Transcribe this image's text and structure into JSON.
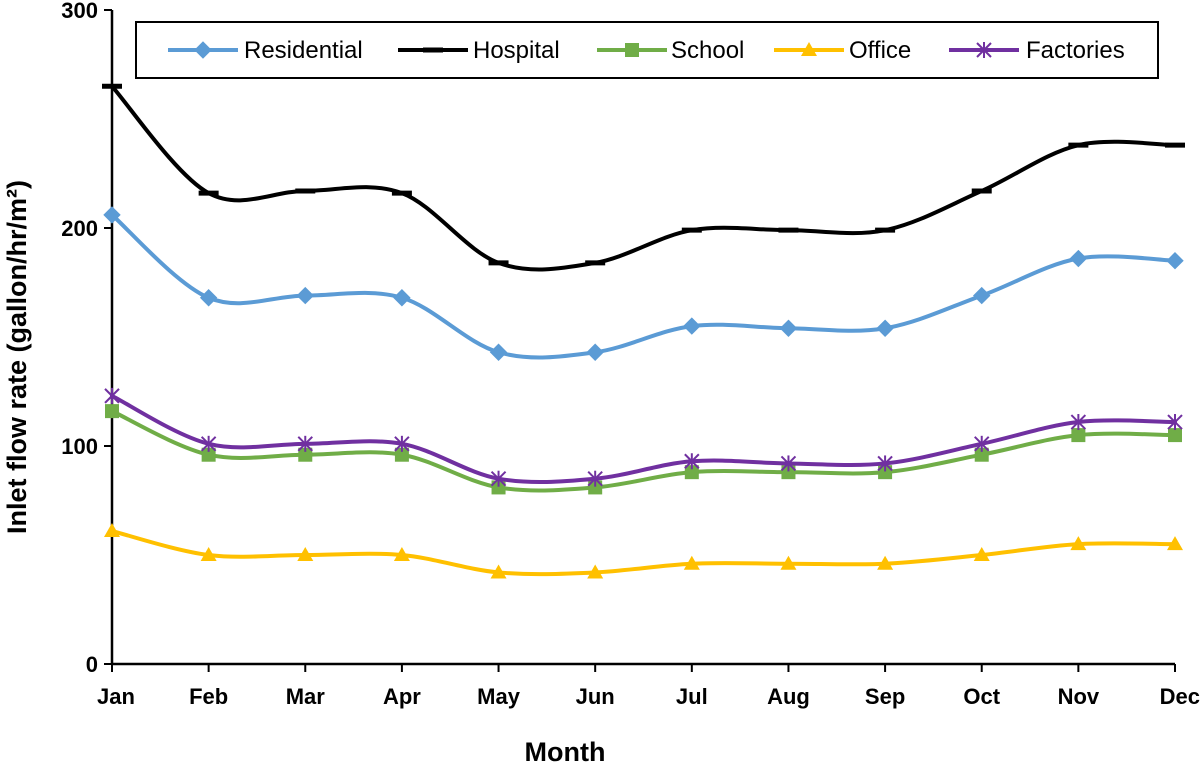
{
  "chart_data": {
    "type": "line",
    "title": "",
    "xlabel": "Month",
    "ylabel": "Inlet flow rate (gallon/hr/m²)",
    "ylim": [
      0,
      300
    ],
    "yticks": [
      0,
      100,
      200,
      300
    ],
    "grid": false,
    "legend_position": "top",
    "categories": [
      "Jan",
      "Feb",
      "Mar",
      "Apr",
      "May",
      "Jun",
      "Jul",
      "Aug",
      "Sep",
      "Oct",
      "Nov",
      "Dec"
    ],
    "series": [
      {
        "name": "Residential",
        "color": "#5B9BD5",
        "marker": "diamond",
        "values": [
          206,
          168,
          169,
          168,
          143,
          143,
          155,
          154,
          154,
          169,
          186,
          185
        ]
      },
      {
        "name": "Hospital",
        "color": "#000000",
        "marker": "dash",
        "values": [
          265,
          216,
          217,
          216,
          184,
          184,
          199,
          199,
          199,
          217,
          238,
          238
        ]
      },
      {
        "name": "School",
        "color": "#70AD47",
        "marker": "square",
        "values": [
          116,
          96,
          96,
          96,
          81,
          81,
          88,
          88,
          88,
          96,
          105,
          105
        ]
      },
      {
        "name": "Office",
        "color": "#FFC000",
        "marker": "triangle",
        "values": [
          61,
          50,
          50,
          50,
          42,
          42,
          46,
          46,
          46,
          50,
          55,
          55
        ]
      },
      {
        "name": "Factories",
        "color": "#7030A0",
        "marker": "star",
        "values": [
          123,
          101,
          101,
          101,
          85,
          85,
          93,
          92,
          92,
          101,
          111,
          111
        ]
      }
    ]
  }
}
